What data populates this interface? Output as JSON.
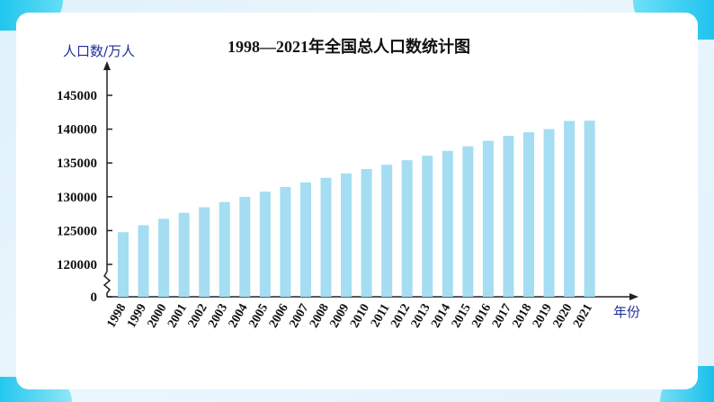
{
  "chart_data": {
    "type": "bar",
    "title": "1998—2021年全国总人口数统计图",
    "ylabel": "人口数/万人",
    "xlabel": "年份",
    "categories": [
      "1998",
      "1999",
      "2000",
      "2001",
      "2002",
      "2003",
      "2004",
      "2005",
      "2006",
      "2007",
      "2008",
      "2009",
      "2010",
      "2011",
      "2012",
      "2013",
      "2014",
      "2015",
      "2016",
      "2017",
      "2018",
      "2019",
      "2020",
      "2021"
    ],
    "values": [
      124761,
      125786,
      126743,
      127627,
      128453,
      129227,
      129988,
      130756,
      131448,
      132129,
      132802,
      133450,
      134091,
      134735,
      135404,
      136072,
      136782,
      137462,
      138271,
      139008,
      139538,
      140005,
      141212,
      141260
    ],
    "ylim": [
      120000,
      145000
    ],
    "axis_break": true,
    "yticks": [
      "0",
      "120000",
      "125000",
      "130000",
      "135000",
      "140000",
      "145000"
    ],
    "bar_color": "#a5ddf3",
    "grid": false
  }
}
